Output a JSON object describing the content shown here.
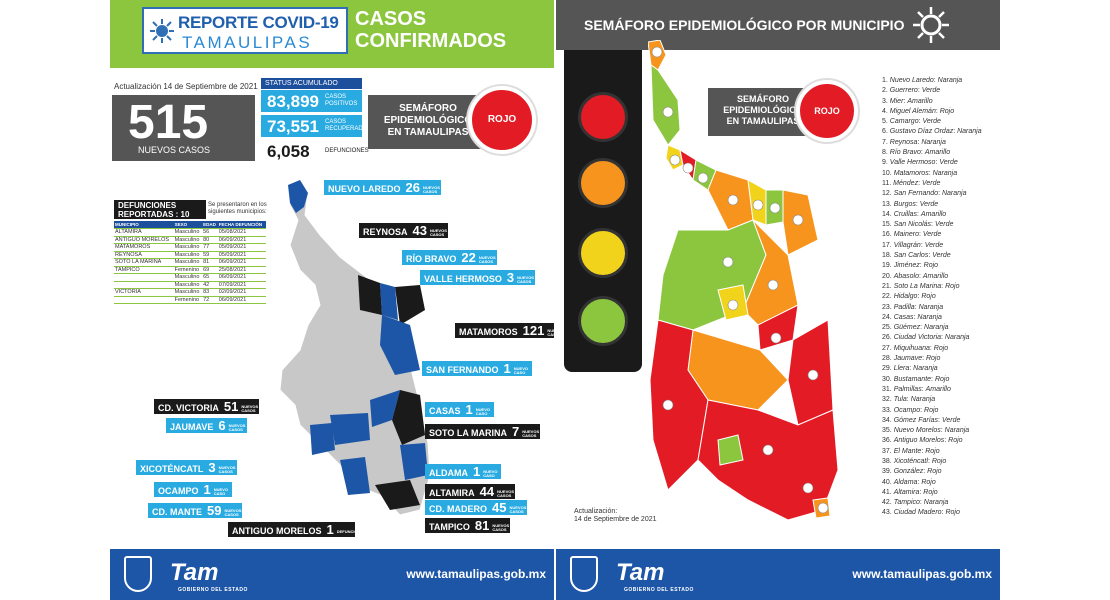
{
  "left": {
    "header": {
      "logo_line1": "REPORTE COVID-19",
      "logo_line2": "TAMAULIPAS",
      "title_line1": "CASOS",
      "title_line2": "CONFIRMADOS"
    },
    "update": "Actualización 14 de Septiembre de 2021",
    "new_cases": {
      "value": "515",
      "label": "NUEVOS CASOS"
    },
    "status": {
      "header": "STATUS ACUMULADO",
      "items": [
        {
          "value": "83,899",
          "label1": "CASOS",
          "label2": "POSITIVOS",
          "color": "#29abe2"
        },
        {
          "value": "73,551",
          "label1": "CASOS",
          "label2": "RECUPERADOS",
          "color": "#29abe2"
        },
        {
          "value": "6,058",
          "label1": "DEFUNCIONES",
          "label2": "",
          "color": "#1a1a1a"
        }
      ]
    },
    "semaforo": {
      "label_line1": "SEMÁFORO",
      "label_line2": "EPIDEMIOLÓGICO",
      "label_line3": "EN TAMAULIPAS",
      "state": "ROJO"
    },
    "deaths": {
      "title_line1": "DEFUNCIONES",
      "title_line2": "REPORTADAS : 10",
      "note": "Se presentaron en los siguientes municipios:",
      "columns": [
        "MUNICIPIO",
        "SEXO",
        "EDAD",
        "FECHA DEFUNCIÓN"
      ],
      "rows": [
        [
          "ALTAMIRA",
          "Masculino",
          "56",
          "05/08/2021"
        ],
        [
          "ANTIGUO MORELOS",
          "Masculino",
          "80",
          "06/09/2021"
        ],
        [
          "MATAMOROS",
          "Masculino",
          "77",
          "05/09/2021"
        ],
        [
          "REYNOSA",
          "Masculino",
          "59",
          "05/09/2021"
        ],
        [
          "SOTO LA MARINA",
          "Masculino",
          "81",
          "06/09/2021"
        ],
        [
          "TAMPICO",
          "Femenino",
          "69",
          "25/08/2021"
        ],
        [
          "",
          "Masculino",
          "65",
          "06/09/2021"
        ],
        [
          "",
          "Masculino",
          "42",
          "07/09/2021"
        ],
        [
          "VICTORIA",
          "Masculino",
          "83",
          "02/09/2021"
        ],
        [
          "",
          "Femenino",
          "72",
          "06/09/2021"
        ]
      ]
    },
    "tags": [
      {
        "name": "NUEVO LAREDO",
        "num": "26",
        "sub": "NUEVOS CASOS",
        "style": "b"
      },
      {
        "name": "REYNOSA",
        "num": "43",
        "sub": "NUEVOS CASOS",
        "style": "k"
      },
      {
        "name": "RÍO BRAVO",
        "num": "22",
        "sub": "NUEVOS CASOS",
        "style": "b"
      },
      {
        "name": "VALLE HERMOSO",
        "num": "3",
        "sub": "NUEVOS CASOS",
        "style": "b"
      },
      {
        "name": "MATAMOROS",
        "num": "121",
        "sub": "NUEVOS CASOS",
        "style": "k"
      },
      {
        "name": "SAN FERNANDO",
        "num": "1",
        "sub": "NUEVO CASO",
        "style": "b"
      },
      {
        "name": "CD. VICTORIA",
        "num": "51",
        "sub": "NUEVOS CASOS",
        "style": "k"
      },
      {
        "name": "CASAS",
        "num": "1",
        "sub": "NUEVO CASO",
        "style": "b"
      },
      {
        "name": "JAUMAVE",
        "num": "6",
        "sub": "NUEVOS CASOS",
        "style": "b"
      },
      {
        "name": "SOTO LA MARINA",
        "num": "7",
        "sub": "NUEVOS CASOS",
        "style": "k"
      },
      {
        "name": "XICOTÉNCATL",
        "num": "3",
        "sub": "NUEVOS CASOS",
        "style": "b"
      },
      {
        "name": "ALDAMA",
        "num": "1",
        "sub": "NUEVO CASO",
        "style": "b"
      },
      {
        "name": "OCAMPO",
        "num": "1",
        "sub": "NUEVO CASO",
        "style": "b"
      },
      {
        "name": "ALTAMIRA",
        "num": "44",
        "sub": "NUEVOS CASOS",
        "style": "k"
      },
      {
        "name": "CD. MANTE",
        "num": "59",
        "sub": "NUEVOS CASOS",
        "style": "b"
      },
      {
        "name": "CD. MADERO",
        "num": "45",
        "sub": "NUEVOS CASOS",
        "style": "b"
      },
      {
        "name": "TAMPICO",
        "num": "81",
        "sub": "NUEVOS CASOS",
        "style": "k"
      },
      {
        "name": "ANTIGUO MORELOS",
        "num": "1",
        "sub": "DEFUNCIÓN",
        "style": "k"
      }
    ],
    "footer": {
      "brand": "Tam",
      "gov": "GOBIERNO DEL ESTADO",
      "url": "www.tamaulipas.gob.mx"
    }
  },
  "right": {
    "header": "SEMÁFORO EPIDEMIOLÓGICO POR MUNICIPIO",
    "semaforo": {
      "label_line1": "SEMÁFORO",
      "label_line2": "EPIDEMIOLÓGICO",
      "label_line3": "EN TAMAULIPAS",
      "state": "ROJO"
    },
    "update_line1": "Actualización:",
    "update_line2": "14 de Septiembre de 2021",
    "colors": {
      "Rojo": "#e21b24",
      "Naranja": "#f7941d",
      "Amarillo": "#f2d31b",
      "Verde": "#8cc63f"
    },
    "municipalities": [
      {
        "n": "1.",
        "name": "Nuevo Laredo",
        "color": "Naranja"
      },
      {
        "n": "2.",
        "name": "Guerrero",
        "color": "Verde"
      },
      {
        "n": "3.",
        "name": "Mier",
        "color": "Amarillo"
      },
      {
        "n": "4.",
        "name": "Miguel Alemán",
        "color": "Rojo"
      },
      {
        "n": "5.",
        "name": "Camargo",
        "color": "Verde"
      },
      {
        "n": "6.",
        "name": "Gustavo Díaz Ordaz",
        "color": "Naranja"
      },
      {
        "n": "7.",
        "name": "Reynosa",
        "color": "Naranja"
      },
      {
        "n": "8.",
        "name": "Río Bravo",
        "color": "Amarillo"
      },
      {
        "n": "9.",
        "name": "Valle Hermoso",
        "color": "Verde"
      },
      {
        "n": "10.",
        "name": "Matamoros",
        "color": "Naranja"
      },
      {
        "n": "11.",
        "name": "Méndez",
        "color": "Verde"
      },
      {
        "n": "12.",
        "name": "San Fernando",
        "color": "Naranja"
      },
      {
        "n": "13.",
        "name": "Burgos",
        "color": "Verde"
      },
      {
        "n": "14.",
        "name": "Cruillas",
        "color": "Amarillo"
      },
      {
        "n": "15.",
        "name": "San Nicolás",
        "color": "Verde"
      },
      {
        "n": "16.",
        "name": "Mainero",
        "color": "Verde"
      },
      {
        "n": "17.",
        "name": "Villagrán",
        "color": "Verde"
      },
      {
        "n": "18.",
        "name": "San Carlos",
        "color": "Verde"
      },
      {
        "n": "19.",
        "name": "Jiménez",
        "color": "Rojo"
      },
      {
        "n": "20.",
        "name": "Abasolo",
        "color": "Amarillo"
      },
      {
        "n": "21.",
        "name": "Soto La Marina",
        "color": "Rojo"
      },
      {
        "n": "22.",
        "name": "Hidalgo",
        "color": "Rojo"
      },
      {
        "n": "23.",
        "name": "Padilla",
        "color": "Naranja"
      },
      {
        "n": "24.",
        "name": "Casas",
        "color": "Naranja"
      },
      {
        "n": "25.",
        "name": "Güémez",
        "color": "Naranja"
      },
      {
        "n": "26.",
        "name": "Ciudad Victoria",
        "color": "Naranja"
      },
      {
        "n": "27.",
        "name": "Miquihuana",
        "color": "Rojo"
      },
      {
        "n": "28.",
        "name": "Jaumave",
        "color": "Rojo"
      },
      {
        "n": "29.",
        "name": "Llera",
        "color": "Naranja"
      },
      {
        "n": "30.",
        "name": "Bustamante",
        "color": "Rojo"
      },
      {
        "n": "31.",
        "name": "Palmillas",
        "color": "Amarillo"
      },
      {
        "n": "32.",
        "name": "Tula",
        "color": "Naranja"
      },
      {
        "n": "33.",
        "name": "Ocampo",
        "color": "Rojo"
      },
      {
        "n": "34.",
        "name": "Gómez Farías",
        "color": "Verde"
      },
      {
        "n": "35.",
        "name": "Nuevo Morelos",
        "color": "Naranja"
      },
      {
        "n": "36.",
        "name": "Antiguo Morelos",
        "color": "Rojo"
      },
      {
        "n": "37.",
        "name": "El Mante",
        "color": "Rojo"
      },
      {
        "n": "38.",
        "name": "Xicoténcatl",
        "color": "Rojo"
      },
      {
        "n": "39.",
        "name": "González",
        "color": "Rojo"
      },
      {
        "n": "40.",
        "name": "Aldama",
        "color": "Rojo"
      },
      {
        "n": "41.",
        "name": "Altamira",
        "color": "Rojo"
      },
      {
        "n": "42.",
        "name": "Tampico",
        "color": "Naranja"
      },
      {
        "n": "43.",
        "name": "Ciudad Madero",
        "color": "Rojo"
      }
    ],
    "footer": {
      "brand": "Tam",
      "gov": "GOBIERNO DEL ESTADO",
      "url": "www.tamaulipas.gob.mx"
    }
  }
}
